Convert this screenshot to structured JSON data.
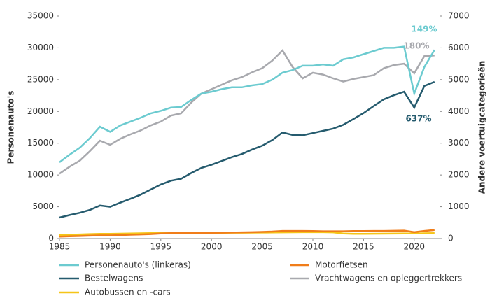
{
  "chart_data": {
    "type": "line",
    "y_label": "Personenauto's",
    "y2_label": "Andere voertuigcategorieën",
    "x": [
      1985,
      1986,
      1987,
      1988,
      1989,
      1990,
      1991,
      1992,
      1993,
      1994,
      1995,
      1996,
      1997,
      1998,
      1999,
      2000,
      2001,
      2002,
      2003,
      2004,
      2005,
      2006,
      2007,
      2008,
      2009,
      2010,
      2011,
      2012,
      2013,
      2014,
      2015,
      2016,
      2017,
      2018,
      2019,
      2020,
      2021,
      2022
    ],
    "xlim": [
      1985,
      2022.5
    ],
    "xticks": [
      1985,
      1990,
      1995,
      2000,
      2005,
      2010,
      2015,
      2020
    ],
    "ylim": [
      0,
      35000
    ],
    "yticks": [
      0,
      5000,
      10000,
      15000,
      20000,
      25000,
      30000,
      35000
    ],
    "y2lim": [
      0,
      7000
    ],
    "y2ticks": [
      0,
      1000,
      2000,
      3000,
      4000,
      5000,
      6000,
      7000
    ],
    "series": [
      {
        "name": "Personenauto's (linkeras)",
        "color": "#6ccbd0",
        "values": [
          12000,
          13200,
          14300,
          15800,
          17600,
          16800,
          17800,
          18400,
          19000,
          19700,
          20100,
          20600,
          20700,
          21800,
          22800,
          23100,
          23500,
          23800,
          23800,
          24100,
          24300,
          25000,
          26100,
          26500,
          27200,
          27200,
          27400,
          27200,
          28200,
          28500,
          29000,
          29500,
          30000,
          30000,
          30200,
          22800,
          27000,
          29700
        ]
      },
      {
        "name": "Motorfietsen",
        "color": "#f07d1a",
        "axis": "y2",
        "values": [
          60,
          70,
          80,
          90,
          100,
          100,
          110,
          120,
          130,
          140,
          160,
          170,
          170,
          175,
          180,
          180,
          185,
          190,
          195,
          200,
          210,
          220,
          240,
          240,
          240,
          235,
          230,
          230,
          230,
          235,
          235,
          240,
          240,
          245,
          250,
          200,
          240,
          270
        ]
      },
      {
        "name": "Bestelwagens",
        "color": "#255b6e",
        "axis": "y2",
        "values": [
          660,
          740,
          810,
          900,
          1040,
          1000,
          1130,
          1250,
          1380,
          1540,
          1700,
          1820,
          1880,
          2060,
          2220,
          2320,
          2440,
          2560,
          2660,
          2800,
          2920,
          3100,
          3340,
          3260,
          3250,
          3320,
          3390,
          3460,
          3580,
          3760,
          3950,
          4170,
          4380,
          4510,
          4620,
          4120,
          4800,
          4930
        ]
      },
      {
        "name": "Vrachtwagens en opleggertrekkers",
        "color": "#a8a9ae",
        "axis": "y2",
        "values": [
          2040,
          2260,
          2450,
          2750,
          3080,
          2950,
          3140,
          3280,
          3400,
          3560,
          3680,
          3870,
          3940,
          4280,
          4560,
          4700,
          4840,
          4980,
          5080,
          5230,
          5360,
          5600,
          5920,
          5400,
          5040,
          5220,
          5160,
          5040,
          4940,
          5020,
          5080,
          5140,
          5360,
          5460,
          5500,
          5200,
          5740,
          5760
        ]
      },
      {
        "name": "Autobussen en -cars",
        "color": "#f5c518",
        "axis": "y2",
        "values": [
          110,
          120,
          130,
          140,
          150,
          150,
          155,
          160,
          165,
          170,
          170,
          172,
          174,
          176,
          178,
          180,
          182,
          184,
          186,
          188,
          190,
          192,
          195,
          198,
          200,
          200,
          200,
          195,
          160,
          150,
          150,
          152,
          154,
          156,
          158,
          160,
          165,
          170
        ]
      }
    ],
    "annotations": [
      {
        "text": "149%",
        "color": "#6ccbd0"
      },
      {
        "text": "180%",
        "color": "#a8a9ae"
      },
      {
        "text": "637%",
        "color": "#255b6e"
      }
    ]
  }
}
